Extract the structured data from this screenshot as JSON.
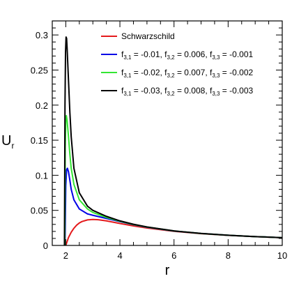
{
  "chart_data": {
    "type": "line",
    "xlabel": "r",
    "ylabel": "U",
    "ylabel_subscript": "r",
    "xlim": [
      1.5,
      10
    ],
    "ylim": [
      0,
      0.32
    ],
    "x_ticks": [
      2,
      4,
      6,
      8,
      10
    ],
    "x_tick_labels": [
      "2",
      "4",
      "6",
      "8",
      "10"
    ],
    "y_ticks": [
      0,
      0.05,
      0.1,
      0.15,
      0.2,
      0.25,
      0.3
    ],
    "y_tick_labels": [
      "0",
      "0.05",
      "0.1",
      "0.15",
      "0.2",
      "0.25",
      "0.3"
    ],
    "grid": false,
    "legend_position": "top-right",
    "series": [
      {
        "name": "Schwarzschild",
        "legend_parts": [
          {
            "t": "Schwarzschild"
          }
        ],
        "color": "#e41a1c",
        "x": [
          2.0,
          2.1,
          2.2,
          2.3,
          2.4,
          2.5,
          2.6,
          2.8,
          3.0,
          3.2,
          3.5,
          4.0,
          4.5,
          5.0,
          6.0,
          7.0,
          8.0,
          9.0,
          10.0
        ],
        "y": [
          0.0,
          0.0113,
          0.0188,
          0.0245,
          0.0289,
          0.032,
          0.0341,
          0.0364,
          0.037,
          0.0366,
          0.035,
          0.0313,
          0.0278,
          0.0248,
          0.0201,
          0.0168,
          0.0144,
          0.0125,
          0.0111
        ]
      },
      {
        "name": "f3,1 = -0.01, f3,2 = 0.006, f3,3 = -0.001",
        "legend_parts": [
          {
            "t": "f"
          },
          {
            "s": "3,1"
          },
          {
            "t": " = -0.01, f"
          },
          {
            "s": "3,2"
          },
          {
            "t": " = 0.006, f"
          },
          {
            "s": "3,3"
          },
          {
            "t": " = -0.001"
          }
        ],
        "color": "#0000e6",
        "x": [
          1.97,
          2.0,
          2.03,
          2.06,
          2.1,
          2.15,
          2.2,
          2.3,
          2.5,
          2.8,
          3.0,
          3.5,
          4.0,
          4.5,
          5.0,
          6.0,
          7.0,
          8.0,
          9.0,
          10.0
        ],
        "y": [
          0.0,
          0.085,
          0.108,
          0.11,
          0.105,
          0.093,
          0.08,
          0.065,
          0.052,
          0.045,
          0.043,
          0.0385,
          0.034,
          0.0295,
          0.026,
          0.0205,
          0.017,
          0.0145,
          0.0126,
          0.0111
        ]
      },
      {
        "name": "f3,1 = -0.02, f3,2 = 0.007, f3,3 = -0.002",
        "legend_parts": [
          {
            "t": "f"
          },
          {
            "s": "3,1"
          },
          {
            "t": " = -0.02, f"
          },
          {
            "s": "3,2"
          },
          {
            "t": " = 0.007, f"
          },
          {
            "s": "3,3"
          },
          {
            "t": " = -0.002"
          }
        ],
        "color": "#33e633",
        "x": [
          1.96,
          1.98,
          2.0,
          2.02,
          2.05,
          2.1,
          2.15,
          2.2,
          2.3,
          2.5,
          2.8,
          3.0,
          3.5,
          4.0,
          4.5,
          5.0,
          6.0,
          7.0,
          8.0,
          9.0,
          10.0
        ],
        "y": [
          0.0,
          0.14,
          0.178,
          0.185,
          0.178,
          0.155,
          0.13,
          0.11,
          0.087,
          0.065,
          0.052,
          0.047,
          0.04,
          0.0345,
          0.0298,
          0.0262,
          0.0206,
          0.017,
          0.0145,
          0.0126,
          0.0111
        ]
      },
      {
        "name": "f3,1 = -0.03, f3,2 = 0.008, f3,3 = -0.003",
        "legend_parts": [
          {
            "t": "f"
          },
          {
            "s": "3,1"
          },
          {
            "t": " = -0.03, f"
          },
          {
            "s": "3,2"
          },
          {
            "t": " = 0.008, f"
          },
          {
            "s": "3,3"
          },
          {
            "t": " = -0.003"
          }
        ],
        "color": "#000000",
        "x": [
          1.95,
          1.97,
          1.99,
          2.01,
          2.03,
          2.05,
          2.1,
          2.15,
          2.2,
          2.3,
          2.5,
          2.8,
          3.0,
          3.5,
          4.0,
          4.5,
          5.0,
          6.0,
          7.0,
          8.0,
          9.0,
          10.0
        ],
        "y": [
          0.0,
          0.2,
          0.275,
          0.297,
          0.295,
          0.28,
          0.235,
          0.19,
          0.155,
          0.11,
          0.075,
          0.056,
          0.05,
          0.0415,
          0.035,
          0.0302,
          0.0264,
          0.0207,
          0.0171,
          0.0145,
          0.0126,
          0.0111
        ]
      }
    ]
  }
}
